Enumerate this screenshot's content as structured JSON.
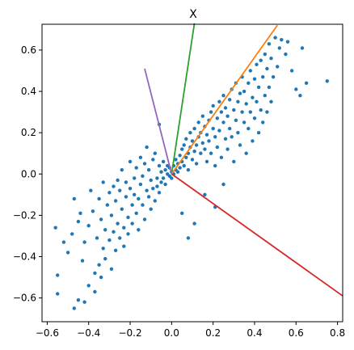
{
  "chart_data": {
    "type": "scatter",
    "title": "X",
    "xlabel": "",
    "ylabel": "",
    "xlim": [
      -0.625,
      0.825
    ],
    "ylim": [
      -0.715,
      0.725
    ],
    "grid": false,
    "xticks": [
      -0.6,
      -0.4,
      -0.2,
      0.0,
      0.2,
      0.4,
      0.6,
      0.8
    ],
    "xtick_labels": [
      "−0.6",
      "−0.4",
      "−0.2",
      "0.0",
      "0.2",
      "0.4",
      "0.6",
      "0.8"
    ],
    "yticks": [
      -0.6,
      -0.4,
      -0.2,
      0.0,
      0.2,
      0.4,
      0.6
    ],
    "ytick_labels": [
      "−0.6",
      "−0.4",
      "−0.2",
      "0.0",
      "0.2",
      "0.4",
      "0.6"
    ],
    "point_color": "#1f77b4",
    "point_radius_px": 2.2,
    "points_shown": [
      [
        -0.56,
        -0.26
      ],
      [
        -0.55,
        -0.49
      ],
      [
        -0.55,
        -0.58
      ],
      [
        -0.52,
        -0.33
      ],
      [
        -0.5,
        -0.38
      ],
      [
        -0.48,
        -0.29
      ],
      [
        -0.47,
        -0.12
      ],
      [
        -0.47,
        -0.65
      ],
      [
        -0.45,
        -0.23
      ],
      [
        -0.45,
        -0.61
      ],
      [
        -0.44,
        -0.19
      ],
      [
        -0.43,
        -0.42
      ],
      [
        -0.42,
        -0.33
      ],
      [
        -0.42,
        -0.62
      ],
      [
        -0.4,
        -0.25
      ],
      [
        -0.4,
        -0.54
      ],
      [
        -0.39,
        -0.08
      ],
      [
        -0.38,
        -0.18
      ],
      [
        -0.37,
        -0.48
      ],
      [
        -0.37,
        -0.57
      ],
      [
        -0.36,
        -0.31
      ],
      [
        -0.35,
        -0.44
      ],
      [
        -0.35,
        -0.12
      ],
      [
        -0.34,
        -0.22
      ],
      [
        -0.34,
        -0.5
      ],
      [
        -0.33,
        -0.04
      ],
      [
        -0.33,
        -0.36
      ],
      [
        -0.32,
        -0.27
      ],
      [
        -0.32,
        -0.41
      ],
      [
        -0.31,
        -0.15
      ],
      [
        -0.3,
        -0.09
      ],
      [
        -0.3,
        -0.32
      ],
      [
        -0.29,
        -0.2
      ],
      [
        -0.29,
        -0.46
      ],
      [
        -0.28,
        -0.06
      ],
      [
        -0.28,
        -0.28
      ],
      [
        -0.27,
        -0.37
      ],
      [
        -0.27,
        -0.13
      ],
      [
        -0.26,
        -0.03
      ],
      [
        -0.26,
        -0.24
      ],
      [
        -0.25,
        -0.31
      ],
      [
        -0.25,
        -0.08
      ],
      [
        -0.24,
        -0.17
      ],
      [
        -0.24,
        0.02
      ],
      [
        -0.23,
        -0.26
      ],
      [
        -0.23,
        -0.35
      ],
      [
        -0.22,
        -0.11
      ],
      [
        -0.22,
        -0.04
      ],
      [
        -0.21,
        -0.21
      ],
      [
        -0.21,
        -0.29
      ],
      [
        -0.2,
        -0.07
      ],
      [
        -0.2,
        0.06
      ],
      [
        -0.19,
        -0.15
      ],
      [
        -0.19,
        -0.24
      ],
      [
        -0.18,
        -0.02
      ],
      [
        -0.18,
        -0.1
      ],
      [
        -0.17,
        0.03
      ],
      [
        -0.17,
        -0.19
      ],
      [
        -0.16,
        -0.12
      ],
      [
        -0.16,
        -0.27
      ],
      [
        -0.15,
        -0.05
      ],
      [
        -0.15,
        0.08
      ],
      [
        -0.14,
        -0.15
      ],
      [
        -0.14,
        -0.01
      ],
      [
        -0.13,
        -0.22
      ],
      [
        -0.13,
        0.05
      ],
      [
        -0.12,
        -0.08
      ],
      [
        -0.12,
        0.13
      ],
      [
        -0.11,
        -0.11
      ],
      [
        -0.11,
        0.02
      ],
      [
        -0.1,
        -0.17
      ],
      [
        -0.1,
        -0.03
      ],
      [
        -0.09,
        0.07
      ],
      [
        -0.09,
        -0.07
      ],
      [
        -0.08,
        -0.13
      ],
      [
        -0.08,
        0.1
      ],
      [
        -0.07,
        -0.02
      ],
      [
        -0.07,
        -0.06
      ],
      [
        -0.06,
        0.04
      ],
      [
        -0.06,
        -0.09
      ],
      [
        -0.05,
        0.01
      ],
      [
        -0.05,
        -0.04
      ],
      [
        -0.04,
        0.06
      ],
      [
        -0.04,
        -0.02
      ],
      [
        -0.03,
        0.02
      ],
      [
        -0.03,
        -0.05
      ],
      [
        -0.02,
        0.0
      ],
      [
        -0.02,
        0.04
      ],
      [
        -0.01,
        -0.01
      ],
      [
        -0.01,
        0.03
      ],
      [
        0.0,
        0.01
      ],
      [
        0.0,
        -0.02
      ],
      [
        0.01,
        0.04
      ],
      [
        0.01,
        0.0
      ],
      [
        0.02,
        0.02
      ],
      [
        0.02,
        0.07
      ],
      [
        0.03,
        0.01
      ],
      [
        0.03,
        0.05
      ],
      [
        0.04,
        0.09
      ],
      [
        0.04,
        0.03
      ],
      [
        0.05,
        0.06
      ],
      [
        0.05,
        0.12
      ],
      [
        0.06,
        0.04
      ],
      [
        0.06,
        0.14
      ],
      [
        0.07,
        0.08
      ],
      [
        0.07,
        0.17
      ],
      [
        0.08,
        0.1
      ],
      [
        0.08,
        0.02
      ],
      [
        0.09,
        0.13
      ],
      [
        0.09,
        0.2
      ],
      [
        0.1,
        0.07
      ],
      [
        0.1,
        0.16
      ],
      [
        0.11,
        0.11
      ],
      [
        0.11,
        0.22
      ],
      [
        0.12,
        0.14
      ],
      [
        0.12,
        0.05
      ],
      [
        0.13,
        0.18
      ],
      [
        0.13,
        0.25
      ],
      [
        0.14,
        0.1
      ],
      [
        0.14,
        0.2
      ],
      [
        0.15,
        0.15
      ],
      [
        0.15,
        0.28
      ],
      [
        0.16,
        0.12
      ],
      [
        0.16,
        0.23
      ],
      [
        0.17,
        0.19
      ],
      [
        0.17,
        0.06
      ],
      [
        0.18,
        0.26
      ],
      [
        0.18,
        0.16
      ],
      [
        0.19,
        0.3
      ],
      [
        0.19,
        0.1
      ],
      [
        0.2,
        0.22
      ],
      [
        0.2,
        0.33
      ],
      [
        0.21,
        0.18
      ],
      [
        0.21,
        0.04
      ],
      [
        0.22,
        0.27
      ],
      [
        0.22,
        0.13
      ],
      [
        0.23,
        0.35
      ],
      [
        0.23,
        0.21
      ],
      [
        0.24,
        0.3
      ],
      [
        0.24,
        0.08
      ],
      [
        0.25,
        0.25
      ],
      [
        0.25,
        0.38
      ],
      [
        0.26,
        0.17
      ],
      [
        0.26,
        0.32
      ],
      [
        0.27,
        0.28
      ],
      [
        0.27,
        0.12
      ],
      [
        0.28,
        0.36
      ],
      [
        0.28,
        0.22
      ],
      [
        0.29,
        0.41
      ],
      [
        0.29,
        0.18
      ],
      [
        0.3,
        0.31
      ],
      [
        0.3,
        0.06
      ],
      [
        0.31,
        0.26
      ],
      [
        0.31,
        0.44
      ],
      [
        0.32,
        0.35
      ],
      [
        0.32,
        0.2
      ],
      [
        0.33,
        0.39
      ],
      [
        0.33,
        0.14
      ],
      [
        0.34,
        0.3
      ],
      [
        0.34,
        0.47
      ],
      [
        0.35,
        0.25
      ],
      [
        0.35,
        0.4
      ],
      [
        0.36,
        0.34
      ],
      [
        0.36,
        0.1
      ],
      [
        0.37,
        0.44
      ],
      [
        0.37,
        0.22
      ],
      [
        0.38,
        0.5
      ],
      [
        0.38,
        0.3
      ],
      [
        0.39,
        0.37
      ],
      [
        0.39,
        0.16
      ],
      [
        0.4,
        0.46
      ],
      [
        0.4,
        0.27
      ],
      [
        0.41,
        0.53
      ],
      [
        0.41,
        0.35
      ],
      [
        0.42,
        0.42
      ],
      [
        0.42,
        0.2
      ],
      [
        0.43,
        0.31
      ],
      [
        0.43,
        0.55
      ],
      [
        0.44,
        0.47
      ],
      [
        0.44,
        0.25
      ],
      [
        0.45,
        0.38
      ],
      [
        0.45,
        0.58
      ],
      [
        0.46,
        0.51
      ],
      [
        0.46,
        0.3
      ],
      [
        0.47,
        0.42
      ],
      [
        0.47,
        0.63
      ],
      [
        0.48,
        0.56
      ],
      [
        0.48,
        0.35
      ],
      [
        0.49,
        0.47
      ],
      [
        0.5,
        0.66
      ],
      [
        0.51,
        0.52
      ],
      [
        0.52,
        0.61
      ],
      [
        0.53,
        0.65
      ],
      [
        0.55,
        0.58
      ],
      [
        0.56,
        0.64
      ],
      [
        0.58,
        0.5
      ],
      [
        0.6,
        0.41
      ],
      [
        0.62,
        0.38
      ],
      [
        0.63,
        0.61
      ],
      [
        0.65,
        0.44
      ],
      [
        0.75,
        0.45
      ],
      [
        0.08,
        -0.31
      ],
      [
        0.11,
        -0.24
      ],
      [
        0.21,
        -0.16
      ],
      [
        0.05,
        -0.19
      ],
      [
        0.16,
        -0.1
      ],
      [
        -0.06,
        0.24
      ],
      [
        0.25,
        -0.05
      ]
    ],
    "vectors": [
      {
        "color": "#2ca02c",
        "from": [
          0.0,
          0.0
        ],
        "to": [
          0.11,
          0.73
        ]
      },
      {
        "color": "#ff7f0e",
        "from": [
          0.0,
          0.0
        ],
        "to": [
          0.51,
          0.72
        ]
      },
      {
        "color": "#9467bd",
        "from": [
          0.0,
          0.0
        ],
        "to": [
          -0.13,
          0.51
        ]
      },
      {
        "color": "#d62728",
        "from": [
          0.0,
          0.0
        ],
        "to": [
          0.825,
          -0.59
        ]
      }
    ]
  }
}
